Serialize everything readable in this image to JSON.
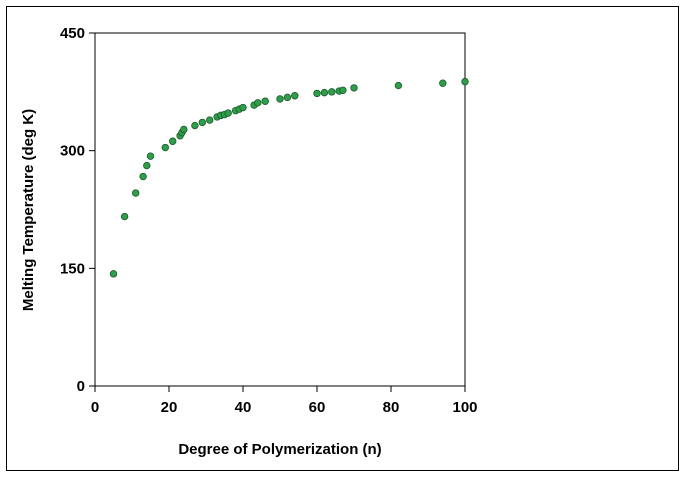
{
  "chart_data": {
    "type": "scatter",
    "title": "",
    "xlabel": "Degree of Polymerization (n)",
    "ylabel": "Melting Temperature (deg K)",
    "xlim": [
      0,
      100
    ],
    "ylim": [
      0,
      450
    ],
    "xticks": [
      0,
      20,
      40,
      60,
      80,
      100
    ],
    "yticks": [
      0,
      150,
      300,
      450
    ],
    "grid": false,
    "legend": "none",
    "marker_color": "#2e9e4a",
    "marker_edge_color": "#1a5a2a",
    "points": [
      {
        "x": 5,
        "y": 143
      },
      {
        "x": 8,
        "y": 216
      },
      {
        "x": 11,
        "y": 246
      },
      {
        "x": 13,
        "y": 267
      },
      {
        "x": 14,
        "y": 281
      },
      {
        "x": 15,
        "y": 293
      },
      {
        "x": 19,
        "y": 304
      },
      {
        "x": 21,
        "y": 312
      },
      {
        "x": 23,
        "y": 319
      },
      {
        "x": 23.5,
        "y": 323
      },
      {
        "x": 24,
        "y": 327
      },
      {
        "x": 27,
        "y": 332
      },
      {
        "x": 29,
        "y": 336
      },
      {
        "x": 31,
        "y": 339
      },
      {
        "x": 33,
        "y": 343
      },
      {
        "x": 34,
        "y": 345
      },
      {
        "x": 35,
        "y": 346
      },
      {
        "x": 36,
        "y": 348
      },
      {
        "x": 38,
        "y": 351
      },
      {
        "x": 39,
        "y": 353
      },
      {
        "x": 40,
        "y": 355
      },
      {
        "x": 43,
        "y": 358
      },
      {
        "x": 44,
        "y": 361
      },
      {
        "x": 46,
        "y": 363
      },
      {
        "x": 50,
        "y": 366
      },
      {
        "x": 52,
        "y": 368
      },
      {
        "x": 54,
        "y": 370
      },
      {
        "x": 60,
        "y": 373
      },
      {
        "x": 62,
        "y": 374
      },
      {
        "x": 64,
        "y": 375
      },
      {
        "x": 66,
        "y": 376
      },
      {
        "x": 67,
        "y": 377
      },
      {
        "x": 70,
        "y": 380
      },
      {
        "x": 82,
        "y": 383
      },
      {
        "x": 94,
        "y": 386
      },
      {
        "x": 100,
        "y": 388
      }
    ]
  }
}
